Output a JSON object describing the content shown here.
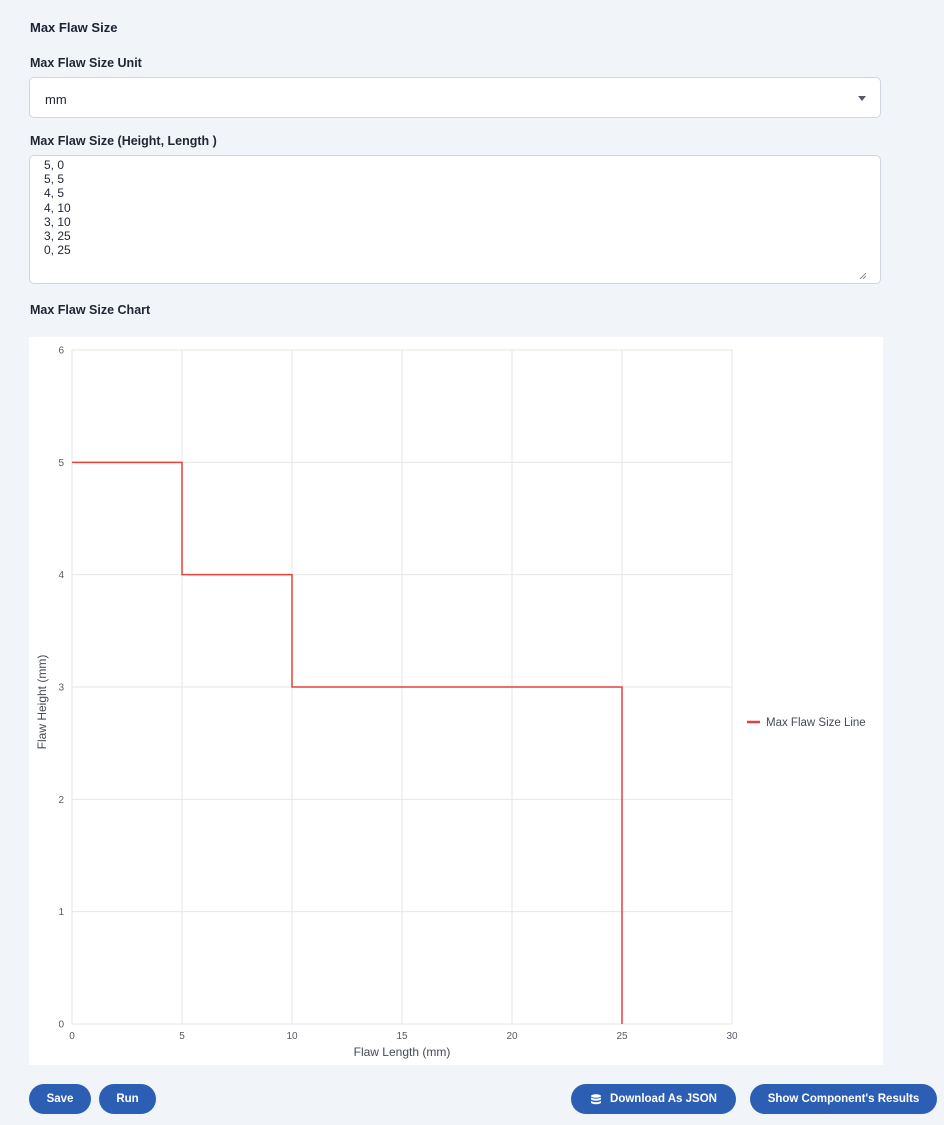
{
  "section": {
    "title": "Max Flaw Size"
  },
  "unit_field": {
    "label": "Max Flaw Size Unit",
    "value": "mm"
  },
  "size_field": {
    "label": "Max Flaw Size (Height, Length )",
    "lines": [
      "5, 0",
      "5, 5",
      "4, 5",
      "4, 10",
      "3, 10",
      "3, 25",
      "0, 25"
    ]
  },
  "chart_section": {
    "title": "Max Flaw Size Chart"
  },
  "chart_data": {
    "type": "line",
    "title": "",
    "xlabel": "Flaw Length (mm)",
    "ylabel": "Flaw Height (mm)",
    "xlim": [
      0,
      30
    ],
    "ylim": [
      0,
      6
    ],
    "x_ticks": [
      "0",
      "5",
      "10",
      "15",
      "20",
      "25",
      "30"
    ],
    "y_ticks": [
      "0",
      "1",
      "2",
      "3",
      "4",
      "5",
      "6"
    ],
    "grid": true,
    "legend_position": "right",
    "series": [
      {
        "name": "Max Flaw Size Line",
        "color": "#e8413a",
        "x": [
          0,
          5,
          5,
          10,
          10,
          25,
          25
        ],
        "y": [
          5,
          5,
          4,
          4,
          3,
          3,
          0
        ]
      }
    ]
  },
  "buttons": {
    "save": "Save",
    "run": "Run",
    "download": "Download As JSON",
    "download_icon": "database-icon",
    "results": "Show Component's Results"
  },
  "colors": {
    "primary": "#2c5fb4",
    "line": "#e8413a",
    "background": "#f1f4f9"
  }
}
